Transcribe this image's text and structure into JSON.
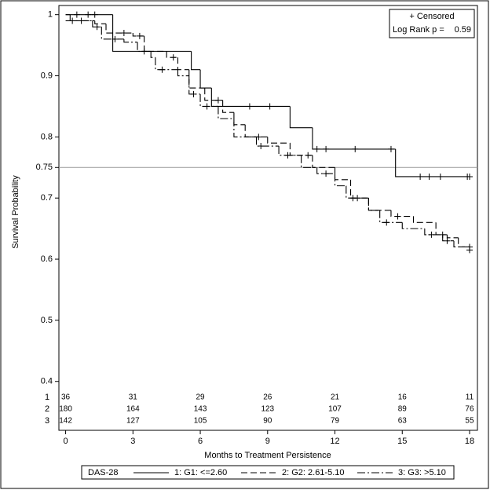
{
  "chart_data": {
    "type": "step",
    "y_label": "Survival Probability",
    "x_label": "Months to Treatment Persistence",
    "xlim": [
      -0.3,
      18.35
    ],
    "xticks": [
      0,
      3,
      6,
      9,
      12,
      15,
      18
    ],
    "ylim": [
      0.32,
      1.015
    ],
    "yticks": [
      0.4,
      0.5,
      0.6,
      0.7,
      0.75,
      0.8,
      0.9,
      1
    ],
    "reference_line": 0.75,
    "censor_note": "+ Censored",
    "test_label": "Log Rank p =",
    "test_value": 0.59,
    "legend_title": "DAS-28",
    "series": [
      {
        "name": "1: G1: <=2.60",
        "color": "#000000",
        "dash": "solid",
        "x": [
          0,
          2.1,
          5.6,
          6.0,
          6.5,
          10,
          11,
          14.7
        ],
        "values": [
          1,
          0.94,
          0.91,
          0.88,
          0.85,
          0.815,
          0.78,
          0.735
        ],
        "censor_x": [
          0.5,
          1.0,
          1.3,
          8.2,
          9.1,
          11.2,
          11.6,
          12.9,
          14.5,
          15.8,
          16.2,
          16.7,
          17.9,
          18
        ],
        "censor_y": [
          1,
          1,
          1,
          0.85,
          0.85,
          0.78,
          0.78,
          0.78,
          0.78,
          0.735,
          0.735,
          0.735,
          0.735,
          0.735
        ]
      },
      {
        "name": "2: G2: 2.61-5.10",
        "color": "#000000",
        "dash": "dashed",
        "x": [
          0,
          0.2,
          1.3,
          1.8,
          3.0,
          3.5,
          4.5,
          5.0,
          5.5,
          6.2,
          7.0,
          7.5,
          8.0,
          9.0,
          10.0,
          11.0,
          12.0,
          12.7,
          13.5,
          14.5,
          15.5,
          16.5,
          17.0,
          17.5
        ],
        "values": [
          1,
          0.99,
          0.985,
          0.97,
          0.965,
          0.94,
          0.93,
          0.91,
          0.88,
          0.86,
          0.84,
          0.82,
          0.8,
          0.79,
          0.77,
          0.75,
          0.73,
          0.7,
          0.68,
          0.67,
          0.66,
          0.64,
          0.635,
          0.62
        ],
        "censor_x": [
          0.7,
          2.6,
          3.3,
          4.8,
          6.8,
          8.6,
          10.8,
          13.0,
          14.8,
          16.8,
          18
        ],
        "censor_y": [
          0.99,
          0.97,
          0.965,
          0.93,
          0.86,
          0.8,
          0.77,
          0.7,
          0.67,
          0.64,
          0.62
        ]
      },
      {
        "name": "3: G3: >5.10",
        "color": "#000000",
        "dash": "dashdot",
        "x": [
          0,
          1.2,
          1.6,
          2.6,
          3.2,
          3.8,
          4.0,
          5.0,
          5.5,
          6.0,
          6.8,
          7.5,
          8.5,
          9.5,
          10.5,
          11.2,
          12.0,
          12.5,
          13.5,
          14.0,
          15.0,
          16.0,
          16.8,
          17.3,
          18.0
        ],
        "values": [
          0.99,
          0.98,
          0.96,
          0.955,
          0.94,
          0.93,
          0.91,
          0.9,
          0.87,
          0.85,
          0.83,
          0.8,
          0.785,
          0.77,
          0.75,
          0.74,
          0.72,
          0.7,
          0.68,
          0.66,
          0.65,
          0.64,
          0.63,
          0.62,
          0.615
        ],
        "censor_x": [
          0.3,
          1.4,
          2.2,
          3.5,
          4.3,
          5.7,
          6.3,
          8.7,
          9.9,
          11.6,
          12.8,
          14.3,
          16.3,
          17.0,
          18.0
        ],
        "censor_y": [
          0.99,
          0.98,
          0.96,
          0.94,
          0.91,
          0.87,
          0.85,
          0.785,
          0.77,
          0.74,
          0.7,
          0.66,
          0.64,
          0.63,
          0.615
        ]
      }
    ],
    "risk_table": [
      {
        "label": "1",
        "counts": [
          36,
          31,
          29,
          26,
          21,
          16,
          11
        ]
      },
      {
        "label": "2",
        "counts": [
          180,
          164,
          143,
          123,
          107,
          89,
          76
        ]
      },
      {
        "label": "3",
        "counts": [
          142,
          127,
          105,
          90,
          79,
          63,
          55
        ]
      }
    ]
  }
}
